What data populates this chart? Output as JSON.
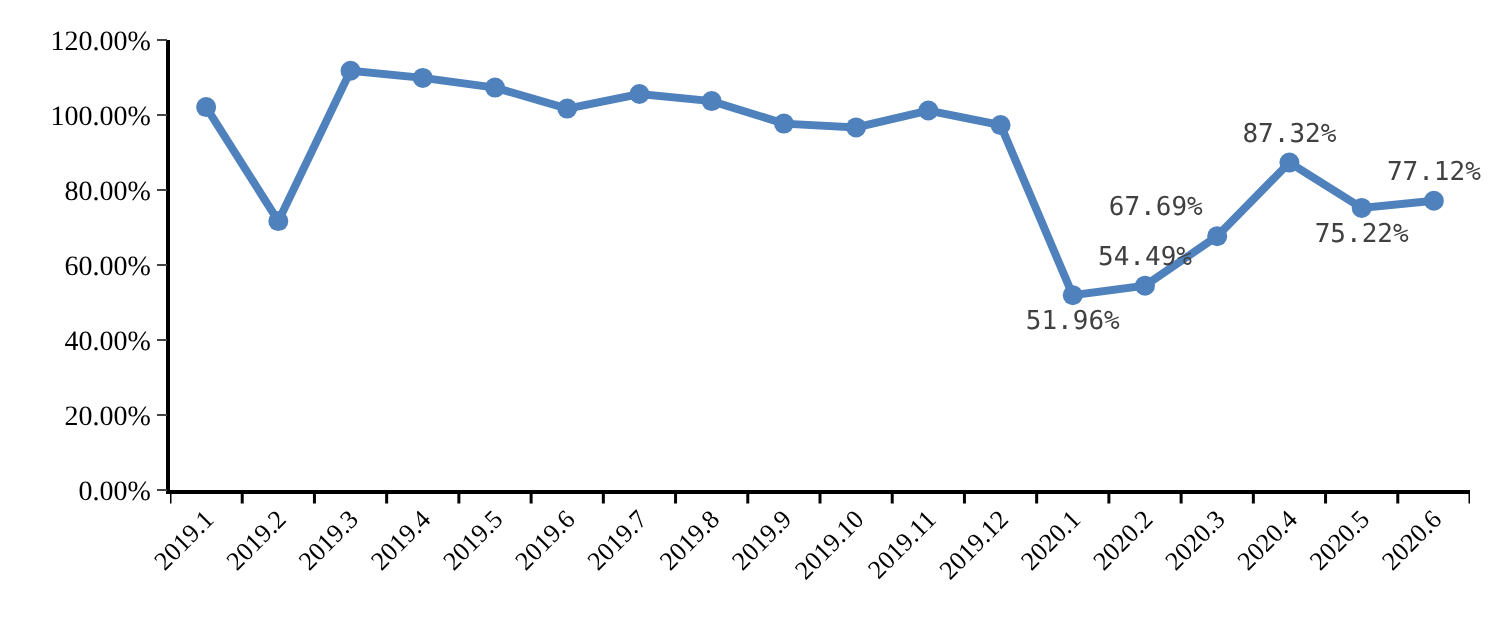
{
  "chart_data": {
    "type": "line",
    "categories": [
      "2019.1",
      "2019.2",
      "2019.3",
      "2019.4",
      "2019.5",
      "2019.6",
      "2019.7",
      "2019.8",
      "2019.9",
      "2019.10",
      "2019.11",
      "2019.12",
      "2020.1",
      "2020.2",
      "2020.3",
      "2020.4",
      "2020.5",
      "2020.6"
    ],
    "series": [
      {
        "color": "#4f81bd",
        "values": [
          102.1,
          71.7,
          111.8,
          109.9,
          107.3,
          101.7,
          105.6,
          103.7,
          97.7,
          96.7,
          101.2,
          97.3,
          51.96,
          54.49,
          67.69,
          87.32,
          75.22,
          77.12
        ],
        "value_labels": [
          null,
          null,
          null,
          null,
          null,
          null,
          null,
          null,
          null,
          null,
          null,
          null,
          "51.96%",
          "54.49%",
          "67.69%",
          "87.32%",
          "75.22%",
          "77.12%"
        ]
      }
    ],
    "ylim": [
      0,
      120
    ],
    "yticks": [
      {
        "value": 0,
        "label": "0.00%"
      },
      {
        "value": 20,
        "label": "20.00%"
      },
      {
        "value": 40,
        "label": "40.00%"
      },
      {
        "value": 60,
        "label": "60.00%"
      },
      {
        "value": 80,
        "label": "80.00%"
      },
      {
        "value": 100,
        "label": "100.00%"
      },
      {
        "value": 120,
        "label": "120.00%"
      }
    ],
    "legend": false,
    "marker": "circle",
    "line_style": "solid"
  }
}
